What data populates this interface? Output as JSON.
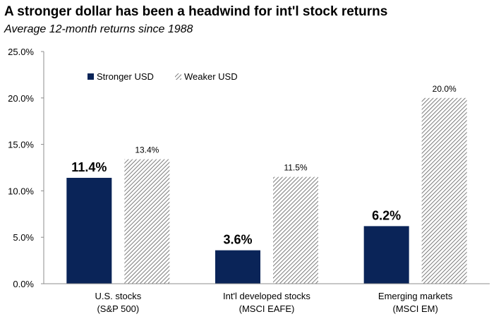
{
  "colors": {
    "stronger": "#0a2458",
    "weaker_hatch": "#5a5a5a",
    "axis": "#8c8c8c"
  },
  "chart_data": {
    "type": "bar",
    "title": "A stronger dollar has been a headwind for int'l stock returns",
    "subtitle": "Average 12-month returns since 1988",
    "categories": [
      [
        "U.S. stocks",
        "(S&P 500)"
      ],
      [
        "Int'l developed stocks",
        "(MSCI EAFE)"
      ],
      [
        "Emerging markets",
        "(MSCI EM)"
      ]
    ],
    "series": [
      {
        "name": "Stronger USD",
        "values": [
          11.4,
          3.6,
          6.2
        ],
        "labels": [
          "11.4%",
          "3.6%",
          "6.2%"
        ],
        "style": "solid"
      },
      {
        "name": "Weaker USD",
        "values": [
          13.4,
          11.5,
          20.0
        ],
        "labels": [
          "13.4%",
          "11.5%",
          "20.0%"
        ],
        "style": "hatched"
      }
    ],
    "ylim": [
      0,
      25
    ],
    "yticks": [
      0,
      5,
      10,
      15,
      20,
      25
    ],
    "ytick_labels": [
      "0.0%",
      "5.0%",
      "10.0%",
      "15.0%",
      "20.0%",
      "25.0%"
    ],
    "grid": false,
    "legend_position": "top-left"
  }
}
